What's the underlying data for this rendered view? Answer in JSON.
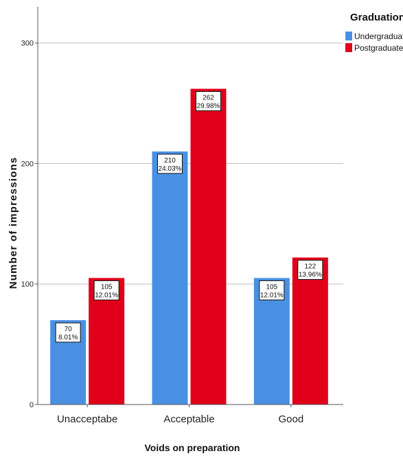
{
  "colors": {
    "undergraduate": "#4a90e2",
    "postgraduate": "#e0001a",
    "grid": "#bfbfbf",
    "axis": "#555555"
  },
  "chart_data": {
    "type": "bar",
    "xlabel": "Voids on preparation",
    "ylabel": "Number of impressions",
    "categories": [
      "Unacceptabe",
      "Acceptable",
      "Good"
    ],
    "ylim": [
      0,
      330
    ],
    "yticks": [
      0,
      100,
      200,
      300
    ],
    "grid": true,
    "legend": {
      "title": "Graduation",
      "placement": "top-right"
    },
    "series": [
      {
        "name": "Undergraduate",
        "color": "#4a90e2",
        "values": [
          70,
          210,
          105
        ],
        "percent_labels": [
          "8.01%",
          "24.03%",
          "12.01%"
        ]
      },
      {
        "name": "Postgraduate",
        "color": "#e0001a",
        "values": [
          105,
          262,
          122
        ],
        "percent_labels": [
          "12.01%",
          "29.98%",
          "13.96%"
        ]
      }
    ]
  }
}
